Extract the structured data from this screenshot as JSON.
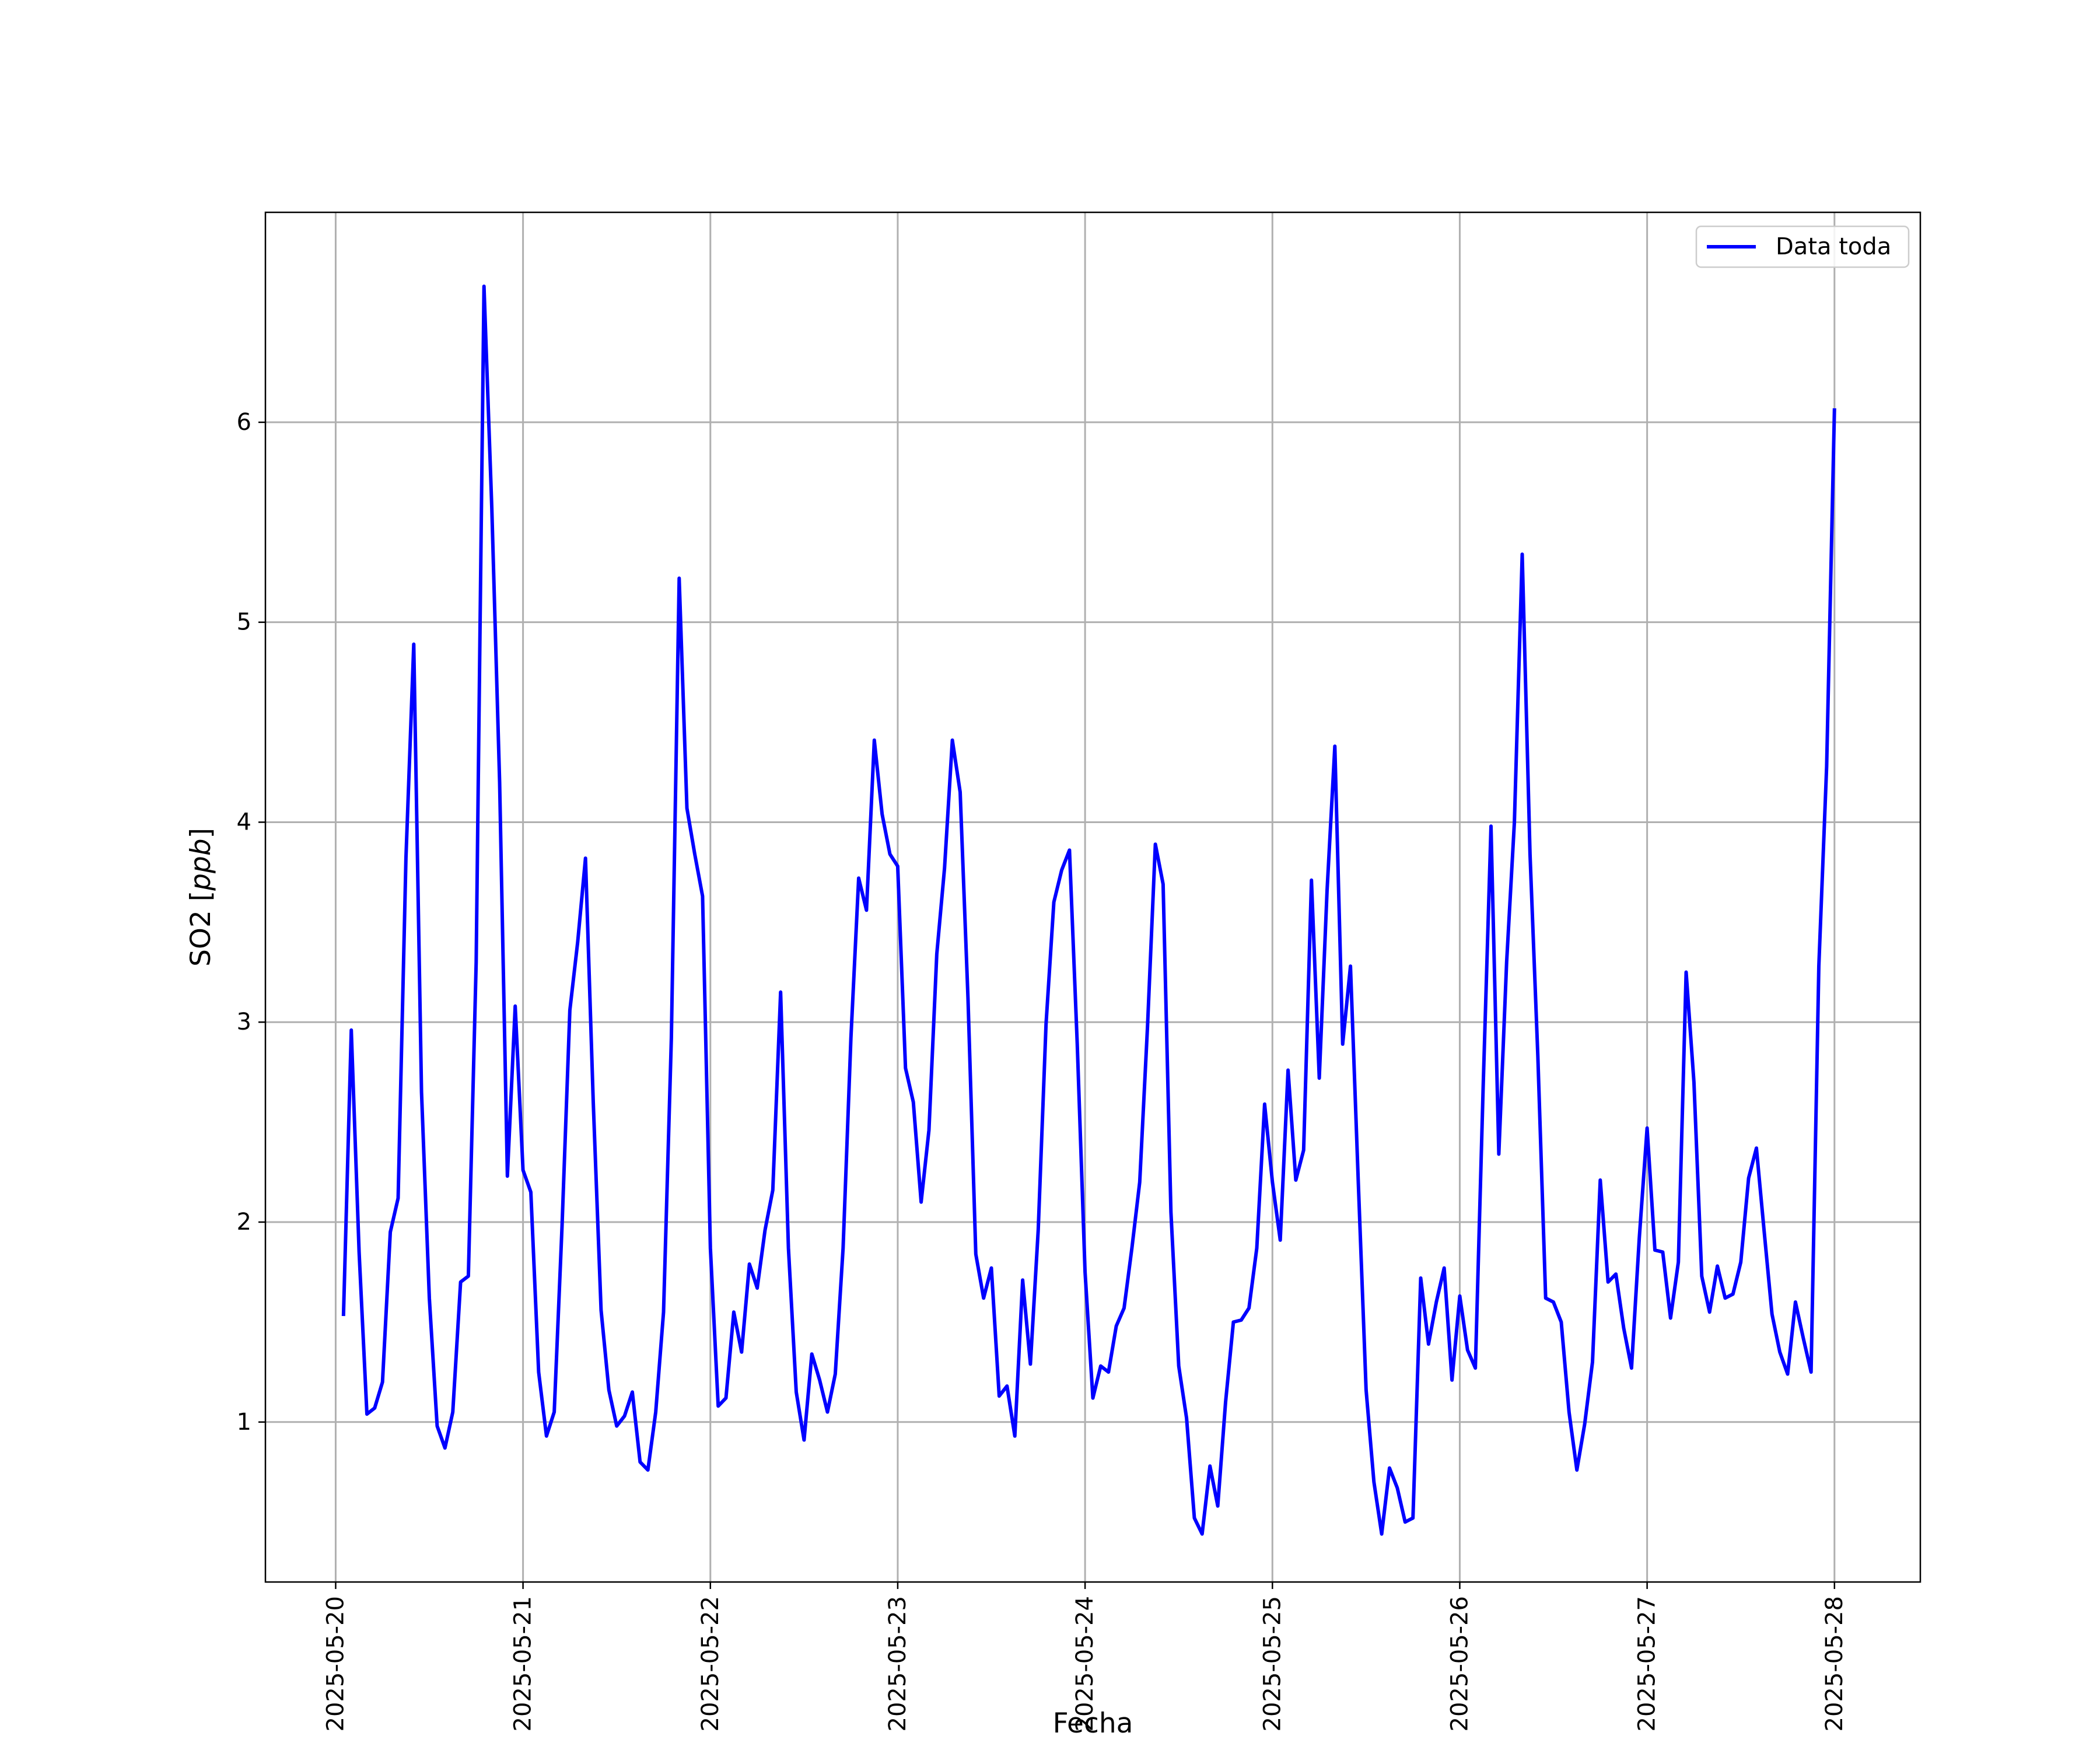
{
  "chart_data": {
    "type": "line",
    "xlabel": "Fecha",
    "ylabel": "SO2 [",
    "ylabel_unit": "ppb",
    "ylabel_close": "]",
    "xlim": [
      "2025-05-19T15:00",
      "2025-05-28T11:00"
    ],
    "ylim": [
      0.2,
      7.05
    ],
    "x_ticks": [
      "2025-05-20",
      "2025-05-21",
      "2025-05-22",
      "2025-05-23",
      "2025-05-24",
      "2025-05-25",
      "2025-05-26",
      "2025-05-27",
      "2025-05-28"
    ],
    "y_ticks": [
      1,
      2,
      3,
      4,
      5,
      6
    ],
    "grid": true,
    "legend_position": "top-right",
    "series": [
      {
        "name": "Data toda",
        "color": "#0000ff",
        "x": [
          "2025-05-20T01:00",
          "2025-05-20T02:00",
          "2025-05-20T03:00",
          "2025-05-20T04:00",
          "2025-05-20T05:00",
          "2025-05-20T06:00",
          "2025-05-20T07:00",
          "2025-05-20T08:00",
          "2025-05-20T09:00",
          "2025-05-20T10:00",
          "2025-05-20T11:00",
          "2025-05-20T12:00",
          "2025-05-20T13:00",
          "2025-05-20T14:00",
          "2025-05-20T15:00",
          "2025-05-20T16:00",
          "2025-05-20T17:00",
          "2025-05-20T18:00",
          "2025-05-20T19:00",
          "2025-05-20T20:00",
          "2025-05-20T21:00",
          "2025-05-20T22:00",
          "2025-05-20T23:00",
          "2025-05-21T00:00",
          "2025-05-21T01:00",
          "2025-05-21T02:00",
          "2025-05-21T03:00",
          "2025-05-21T04:00",
          "2025-05-21T05:00",
          "2025-05-21T06:00",
          "2025-05-21T07:00",
          "2025-05-21T08:00",
          "2025-05-21T09:00",
          "2025-05-21T10:00",
          "2025-05-21T11:00",
          "2025-05-21T12:00",
          "2025-05-21T13:00",
          "2025-05-21T14:00",
          "2025-05-21T15:00",
          "2025-05-21T16:00",
          "2025-05-21T17:00",
          "2025-05-21T18:00",
          "2025-05-21T19:00",
          "2025-05-21T20:00",
          "2025-05-21T21:00",
          "2025-05-21T22:00",
          "2025-05-21T23:00",
          "2025-05-22T00:00",
          "2025-05-22T01:00",
          "2025-05-22T02:00",
          "2025-05-22T03:00",
          "2025-05-22T04:00",
          "2025-05-22T05:00",
          "2025-05-22T06:00",
          "2025-05-22T07:00",
          "2025-05-22T08:00",
          "2025-05-22T09:00",
          "2025-05-22T10:00",
          "2025-05-22T11:00",
          "2025-05-22T12:00",
          "2025-05-22T13:00",
          "2025-05-22T14:00",
          "2025-05-22T15:00",
          "2025-05-22T16:00",
          "2025-05-22T17:00",
          "2025-05-22T18:00",
          "2025-05-22T19:00",
          "2025-05-22T20:00",
          "2025-05-22T21:00",
          "2025-05-22T22:00",
          "2025-05-22T23:00",
          "2025-05-23T00:00",
          "2025-05-23T01:00",
          "2025-05-23T02:00",
          "2025-05-23T03:00",
          "2025-05-23T04:00",
          "2025-05-23T05:00",
          "2025-05-23T06:00",
          "2025-05-23T07:00",
          "2025-05-23T08:00",
          "2025-05-23T09:00",
          "2025-05-23T10:00",
          "2025-05-23T11:00",
          "2025-05-23T12:00",
          "2025-05-23T13:00",
          "2025-05-23T14:00",
          "2025-05-23T15:00",
          "2025-05-23T16:00",
          "2025-05-23T17:00",
          "2025-05-23T18:00",
          "2025-05-23T19:00",
          "2025-05-23T20:00",
          "2025-05-23T21:00",
          "2025-05-23T22:00",
          "2025-05-23T23:00",
          "2025-05-24T00:00",
          "2025-05-24T01:00",
          "2025-05-24T02:00",
          "2025-05-24T03:00",
          "2025-05-24T04:00",
          "2025-05-24T05:00",
          "2025-05-24T06:00",
          "2025-05-24T07:00",
          "2025-05-24T08:00",
          "2025-05-24T09:00",
          "2025-05-24T10:00",
          "2025-05-24T11:00",
          "2025-05-24T12:00",
          "2025-05-24T13:00",
          "2025-05-24T14:00",
          "2025-05-24T15:00",
          "2025-05-24T16:00",
          "2025-05-24T17:00",
          "2025-05-24T18:00",
          "2025-05-24T19:00",
          "2025-05-24T20:00",
          "2025-05-24T21:00",
          "2025-05-24T22:00",
          "2025-05-24T23:00",
          "2025-05-25T00:00",
          "2025-05-25T01:00",
          "2025-05-25T02:00",
          "2025-05-25T03:00",
          "2025-05-25T04:00",
          "2025-05-25T05:00",
          "2025-05-25T06:00",
          "2025-05-25T07:00",
          "2025-05-25T08:00",
          "2025-05-25T09:00",
          "2025-05-25T10:00",
          "2025-05-25T11:00",
          "2025-05-25T12:00",
          "2025-05-25T13:00",
          "2025-05-25T14:00",
          "2025-05-25T15:00",
          "2025-05-25T16:00",
          "2025-05-25T17:00",
          "2025-05-25T18:00",
          "2025-05-25T19:00",
          "2025-05-25T20:00",
          "2025-05-25T21:00",
          "2025-05-25T22:00",
          "2025-05-25T23:00",
          "2025-05-26T00:00",
          "2025-05-26T01:00",
          "2025-05-26T02:00",
          "2025-05-26T03:00",
          "2025-05-26T04:00",
          "2025-05-26T05:00",
          "2025-05-26T06:00",
          "2025-05-26T07:00",
          "2025-05-26T08:00",
          "2025-05-26T09:00",
          "2025-05-26T10:00",
          "2025-05-26T11:00",
          "2025-05-26T12:00",
          "2025-05-26T13:00",
          "2025-05-26T14:00",
          "2025-05-26T15:00",
          "2025-05-26T16:00",
          "2025-05-26T17:00",
          "2025-05-26T18:00",
          "2025-05-26T19:00",
          "2025-05-26T20:00",
          "2025-05-26T21:00",
          "2025-05-26T22:00",
          "2025-05-26T23:00",
          "2025-05-27T00:00",
          "2025-05-27T01:00",
          "2025-05-27T02:00",
          "2025-05-27T03:00",
          "2025-05-27T04:00",
          "2025-05-27T05:00",
          "2025-05-27T06:00",
          "2025-05-27T07:00",
          "2025-05-27T08:00",
          "2025-05-27T09:00",
          "2025-05-27T10:00",
          "2025-05-27T11:00",
          "2025-05-27T12:00",
          "2025-05-27T13:00",
          "2025-05-27T14:00",
          "2025-05-27T15:00",
          "2025-05-27T16:00",
          "2025-05-27T17:00",
          "2025-05-27T18:00",
          "2025-05-27T19:00",
          "2025-05-27T20:00",
          "2025-05-27T21:00",
          "2025-05-27T22:00",
          "2025-05-27T23:00",
          "2025-05-28T00:00"
        ],
        "values": [
          1.53,
          2.96,
          1.85,
          1.04,
          1.07,
          1.2,
          1.95,
          2.12,
          3.82,
          4.89,
          2.65,
          1.62,
          0.98,
          0.87,
          1.05,
          1.7,
          1.73,
          3.3,
          6.68,
          5.57,
          4.2,
          2.23,
          3.08,
          2.26,
          2.15,
          1.25,
          0.93,
          1.05,
          1.98,
          3.06,
          3.4,
          3.82,
          2.6,
          1.56,
          1.16,
          0.98,
          1.03,
          1.15,
          0.8,
          0.76,
          1.05,
          1.55,
          2.92,
          5.22,
          4.07,
          3.84,
          3.63,
          1.87,
          1.08,
          1.12,
          1.55,
          1.35,
          1.79,
          1.67,
          1.96,
          2.16,
          3.15,
          1.87,
          1.15,
          0.91,
          1.34,
          1.21,
          1.05,
          1.24,
          1.87,
          2.92,
          3.72,
          3.56,
          4.41,
          4.04,
          3.84,
          3.78,
          2.77,
          2.6,
          2.1,
          2.46,
          3.34,
          3.77,
          4.41,
          4.15,
          3.12,
          1.84,
          1.62,
          1.77,
          1.13,
          1.18,
          0.93,
          1.71,
          1.29,
          1.96,
          2.99,
          3.6,
          3.76,
          3.86,
          2.89,
          1.75,
          1.12,
          1.28,
          1.25,
          1.48,
          1.57,
          1.87,
          2.2,
          2.98,
          3.89,
          3.69,
          2.05,
          1.28,
          1.02,
          0.52,
          0.44,
          0.78,
          0.58,
          1.1,
          1.5,
          1.51,
          1.57,
          1.87,
          2.59,
          2.2,
          1.91,
          2.76,
          2.21,
          2.36,
          3.71,
          2.72,
          3.66,
          4.38,
          2.89,
          3.28,
          2.2,
          1.16,
          0.7,
          0.44,
          0.77,
          0.67,
          0.5,
          0.52,
          1.72,
          1.39,
          1.6,
          1.77,
          1.21,
          1.63,
          1.36,
          1.27,
          2.68,
          3.98,
          2.34,
          3.3,
          4.0,
          5.34,
          3.84,
          2.83,
          1.62,
          1.6,
          1.5,
          1.05,
          0.76,
          0.99,
          1.3,
          2.21,
          1.7,
          1.74,
          1.47,
          1.27,
          1.92,
          2.47,
          1.86,
          1.85,
          1.52,
          1.8,
          3.25,
          2.7,
          1.73,
          1.55,
          1.78,
          1.62,
          1.64,
          1.8,
          2.22,
          2.37,
          1.95,
          1.54,
          1.35,
          1.24,
          1.6,
          1.42,
          1.25,
          3.28,
          4.28,
          6.07
        ]
      }
    ]
  }
}
